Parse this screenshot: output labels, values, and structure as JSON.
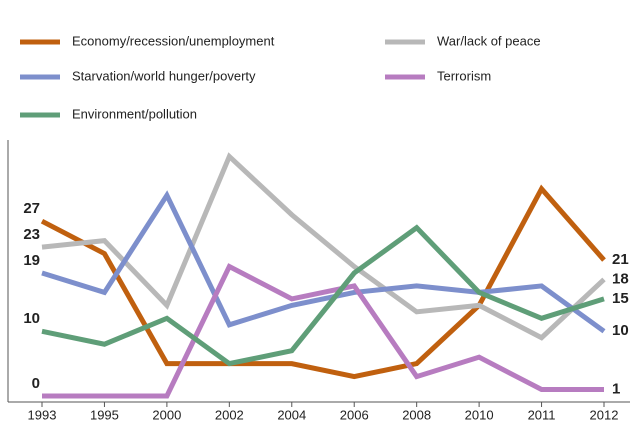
{
  "chart_data": {
    "type": "line",
    "categories": [
      "1993",
      "1995",
      "2000",
      "2002",
      "2004",
      "2006",
      "2008",
      "2010",
      "2011",
      "2012"
    ],
    "series": [
      {
        "name": "Economy/recession/unemployment",
        "color": "#c0600f",
        "values": [
          27,
          22,
          5,
          5,
          5,
          3,
          5,
          14,
          32,
          21
        ]
      },
      {
        "name": "War/lack of peace",
        "color": "#b8b8b8",
        "values": [
          23,
          24,
          14,
          37,
          28,
          20,
          13,
          14,
          9,
          18
        ]
      },
      {
        "name": "Starvation/world hunger/poverty",
        "color": "#7d8fcc",
        "values": [
          19,
          16,
          31,
          11,
          14,
          16,
          17,
          16,
          17,
          10
        ]
      },
      {
        "name": "Terrorism",
        "color": "#b77cc0",
        "values": [
          0,
          0,
          0,
          20,
          15,
          17,
          3,
          6,
          1,
          1
        ]
      },
      {
        "name": "Environment/pollution",
        "color": "#5f9e78",
        "values": [
          10,
          8,
          12,
          5,
          7,
          19,
          26,
          16,
          12,
          15
        ]
      }
    ],
    "ylim": [
      0,
      38
    ]
  }
}
